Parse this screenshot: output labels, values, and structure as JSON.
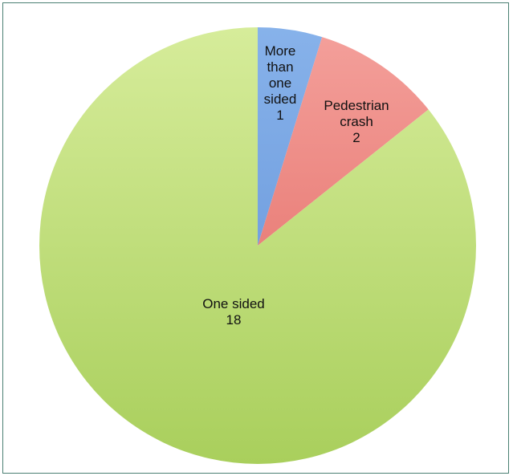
{
  "chart_data": {
    "type": "pie",
    "title": "",
    "legend": "none",
    "start_angle_deg": 0,
    "direction": "clockwise",
    "slices": [
      {
        "label": "More than one sided",
        "label_lines": [
          "More",
          "than",
          "one",
          "sided"
        ],
        "value": 1,
        "value_text": "1",
        "color": "#87b2ea",
        "color_dark": "#5f8fd6"
      },
      {
        "label": "Pedestrian crash",
        "label_lines": [
          "Pedestrian",
          "crash"
        ],
        "value": 2,
        "value_text": "2",
        "color": "#f4a09b",
        "color_dark": "#e0625b"
      },
      {
        "label": "One sided",
        "label_lines": [
          "One sided"
        ],
        "value": 18,
        "value_text": "18",
        "color": "#d6ec9a",
        "color_dark": "#a9cf5c"
      }
    ]
  }
}
